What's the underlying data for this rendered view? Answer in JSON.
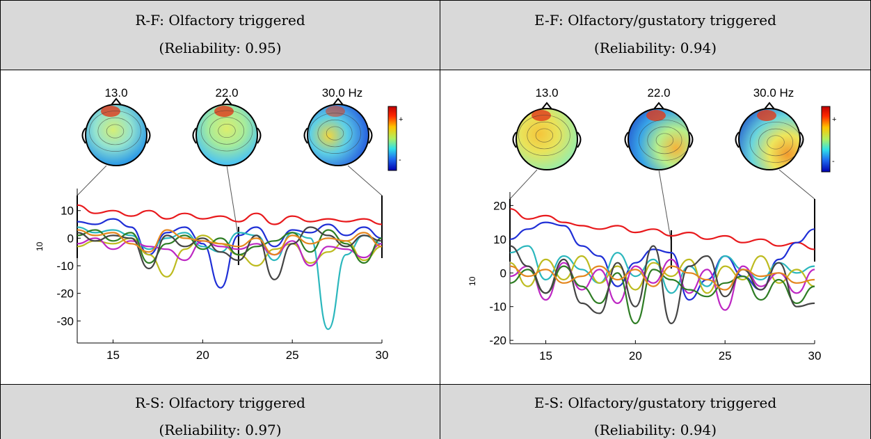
{
  "panels": [
    {
      "id": "rf",
      "title": "R-F: Olfactory triggered",
      "reliability": "(Reliability: 0.95)",
      "freq_labels": [
        "13.0",
        "22.0",
        "30.0 Hz"
      ],
      "colorbar": {
        "plus": "+",
        "minus": "-"
      },
      "ylabel": "10",
      "chart_data": {
        "type": "line",
        "x": [
          13,
          14,
          15,
          16,
          17,
          18,
          19,
          20,
          21,
          22,
          23,
          24,
          25,
          26,
          27,
          28,
          29,
          30
        ],
        "xlim": [
          13,
          30
        ],
        "ylim": [
          -38,
          18
        ],
        "xticks": [
          "15",
          "20",
          "25",
          "30"
        ],
        "xtick_values": [
          15,
          20,
          25,
          30
        ],
        "yticks": [
          "10",
          "0",
          "-10",
          "-20",
          "-30"
        ],
        "ytick_values": [
          10,
          0,
          -10,
          -20,
          -30
        ],
        "markers": [
          13,
          22,
          30
        ],
        "series": [
          {
            "color": "#e8191c",
            "values": [
              12,
              9,
              10,
              8,
              10,
              7,
              9,
              7,
              8,
              6,
              9,
              5,
              8,
              6,
              7,
              6,
              7,
              5
            ]
          },
          {
            "color": "#1f2fd6",
            "values": [
              6,
              5,
              7,
              4,
              -6,
              2,
              4,
              -2,
              -18,
              1,
              4,
              -3,
              3,
              2,
              5,
              1,
              4,
              0
            ]
          },
          {
            "color": "#2bb7bd",
            "values": [
              4,
              2,
              3,
              1,
              -4,
              0,
              2,
              -3,
              -5,
              2,
              1,
              -8,
              2,
              0,
              -33,
              -6,
              1,
              -2
            ]
          },
          {
            "color": "#bdbb1f",
            "values": [
              -3,
              -1,
              -2,
              0,
              -6,
              -14,
              -4,
              1,
              -2,
              -6,
              -10,
              -4,
              -2,
              -9,
              -5,
              -1,
              -8,
              -3
            ]
          },
          {
            "color": "#bd27c3",
            "values": [
              -2,
              0,
              -4,
              -1,
              -3,
              -4,
              -8,
              -1,
              -3,
              -4,
              -2,
              -6,
              -1,
              -10,
              -3,
              -4,
              -7,
              -2
            ]
          },
          {
            "color": "#2e7d24",
            "values": [
              1,
              3,
              -1,
              2,
              -9,
              -2,
              1,
              -4,
              0,
              -6,
              -3,
              -1,
              2,
              -5,
              3,
              -2,
              -9,
              0
            ]
          },
          {
            "color": "#444444",
            "values": [
              2,
              -1,
              1,
              0,
              -11,
              1,
              -3,
              0,
              -5,
              -8,
              1,
              -15,
              -2,
              4,
              1,
              -3,
              1,
              -1
            ]
          },
          {
            "color": "#e4871f",
            "values": [
              3,
              1,
              2,
              -2,
              -5,
              3,
              0,
              -1,
              -2,
              -3,
              0,
              -6,
              1,
              -2,
              0,
              -1,
              2,
              -3
            ]
          }
        ]
      }
    },
    {
      "id": "ef",
      "title": "E-F: Olfactory/gustatory triggered",
      "reliability": "(Reliability: 0.94)",
      "freq_labels": [
        "13.0",
        "22.0",
        "30.0 Hz"
      ],
      "colorbar": {
        "plus": "+",
        "minus": "-"
      },
      "ylabel": "10",
      "chart_data": {
        "type": "line",
        "x": [
          13,
          14,
          15,
          16,
          17,
          18,
          19,
          20,
          21,
          22,
          23,
          24,
          25,
          26,
          27,
          28,
          29,
          30
        ],
        "xlim": [
          13,
          30
        ],
        "ylim": [
          -21,
          24
        ],
        "xticks": [
          "15",
          "20",
          "25",
          "30"
        ],
        "xtick_values": [
          15,
          20,
          25,
          30
        ],
        "yticks": [
          "20",
          "10",
          "0",
          "-10",
          "-20"
        ],
        "ytick_values": [
          20,
          10,
          0,
          -10,
          -20
        ],
        "markers": [
          13,
          22,
          30
        ],
        "series": [
          {
            "color": "#e8191c",
            "values": [
              19,
              16,
              17,
              15,
              14,
              13,
              14,
              12,
              13,
              11,
              12,
              10,
              11,
              9,
              10,
              8,
              9,
              7
            ]
          },
          {
            "color": "#1f2fd6",
            "values": [
              10,
              13,
              15,
              14,
              8,
              5,
              -4,
              3,
              7,
              6,
              -8,
              -2,
              5,
              -1,
              -5,
              4,
              9,
              13
            ]
          },
          {
            "color": "#2bb7bd",
            "values": [
              6,
              8,
              -2,
              5,
              1,
              -3,
              6,
              -1,
              4,
              -6,
              2,
              -4,
              5,
              1,
              -2,
              3,
              0,
              2
            ]
          },
          {
            "color": "#bdbb1f",
            "values": [
              3,
              -4,
              4,
              -2,
              5,
              -3,
              2,
              -5,
              3,
              -1,
              4,
              -6,
              2,
              -2,
              5,
              -3,
              1,
              -4
            ]
          },
          {
            "color": "#bd27c3",
            "values": [
              -1,
              2,
              -8,
              3,
              -5,
              1,
              -9,
              2,
              -3,
              4,
              -6,
              1,
              -11,
              2,
              -4,
              0,
              -6,
              1
            ]
          },
          {
            "color": "#2e7d24",
            "values": [
              -3,
              1,
              -6,
              2,
              -4,
              -9,
              0,
              -15,
              1,
              -2,
              -5,
              -7,
              -3,
              -1,
              -8,
              -2,
              -9,
              -4
            ]
          },
          {
            "color": "#444444",
            "values": [
              8,
              2,
              -6,
              4,
              -9,
              -12,
              3,
              -10,
              8,
              -15,
              2,
              5,
              -7,
              1,
              -5,
              3,
              -10,
              -9
            ]
          },
          {
            "color": "#e4871f",
            "values": [
              2,
              -1,
              1,
              -3,
              -1,
              2,
              -2,
              1,
              -4,
              2,
              0,
              -2,
              -5,
              1,
              -1,
              0,
              -3,
              -2
            ]
          }
        ]
      }
    }
  ],
  "bottom_headers": [
    {
      "title": "R-S: Olfactory triggered",
      "reliability": "(Reliability: 0.97)"
    },
    {
      "title": "E-S: Olfactory/gustatory triggered",
      "reliability": "(Reliability: 0.94)"
    }
  ],
  "colors": {
    "header_bg": "#d9d9d9",
    "grid_line": "#000000"
  }
}
